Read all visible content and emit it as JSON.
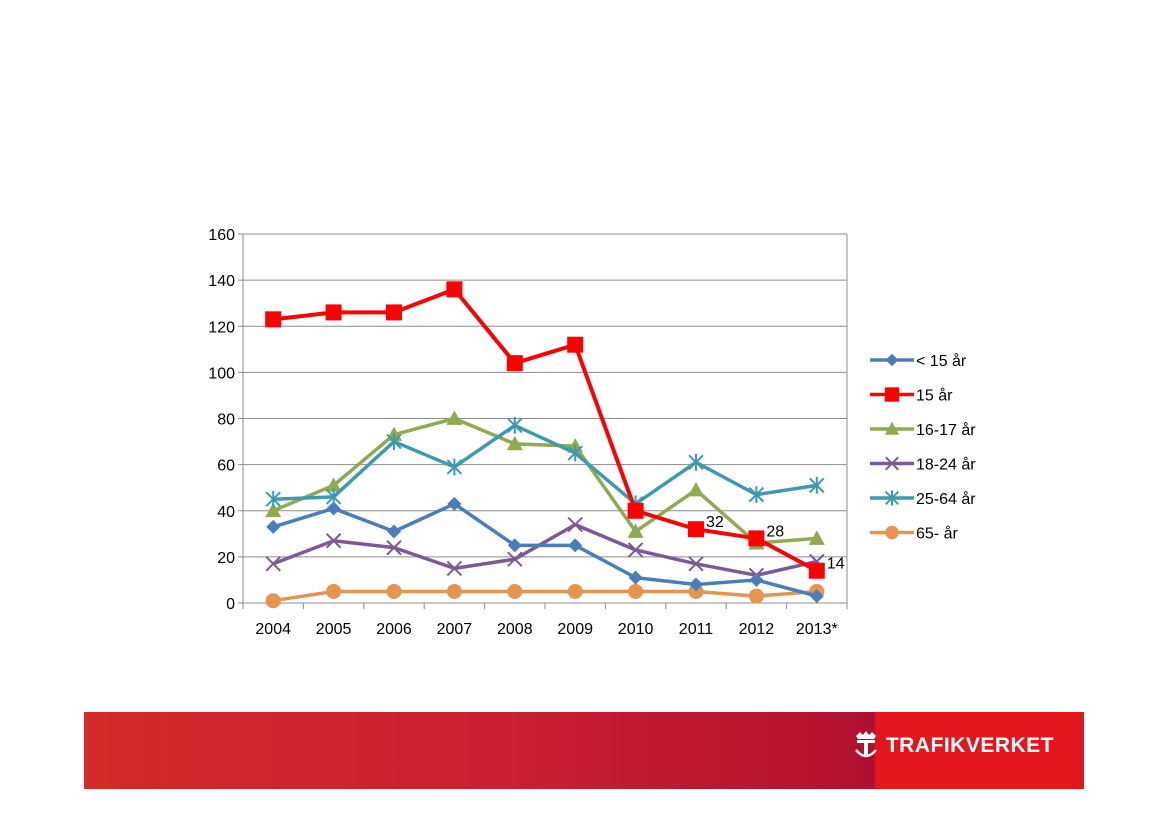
{
  "chart_data": {
    "type": "line",
    "title": "",
    "xlabel": "",
    "ylabel": "",
    "ylim": [
      0,
      160
    ],
    "yticks": [
      0,
      20,
      40,
      60,
      80,
      100,
      120,
      140,
      160
    ],
    "grid": true,
    "legend_position": "right",
    "categories": [
      "2004",
      "2005",
      "2006",
      "2007",
      "2008",
      "2009",
      "2010",
      "2011",
      "2012",
      "2013*"
    ],
    "series": [
      {
        "name": "< 15 år",
        "marker": "diamond",
        "color": "#4a7ebb",
        "values": [
          33,
          41,
          31,
          43,
          25,
          25,
          11,
          8,
          10,
          3
        ]
      },
      {
        "name": "15 år",
        "marker": "square",
        "color": "#ff0000",
        "values": [
          123,
          126,
          126,
          136,
          104,
          112,
          40,
          32,
          28,
          14
        ]
      },
      {
        "name": "16-17 år",
        "marker": "triangle",
        "color": "#8faa4f",
        "values": [
          40,
          51,
          73,
          80,
          69,
          68,
          31,
          49,
          26,
          28
        ]
      },
      {
        "name": "18-24 år",
        "marker": "x",
        "color": "#7b5a97",
        "values": [
          17,
          27,
          24,
          15,
          19,
          34,
          23,
          17,
          12,
          18
        ]
      },
      {
        "name": "25-64 år",
        "marker": "star",
        "color": "#3c9ab0",
        "values": [
          45,
          46,
          70,
          59,
          77,
          65,
          43,
          61,
          47,
          51
        ]
      },
      {
        "name": "65- år",
        "marker": "circle",
        "color": "#e6944e",
        "values": [
          1,
          5,
          5,
          5,
          5,
          5,
          5,
          5,
          3,
          5
        ]
      }
    ],
    "annotations": [
      {
        "series": "15 år",
        "x": "2011",
        "label": "32"
      },
      {
        "series": "15 år",
        "x": "2012",
        "label": "28"
      },
      {
        "series": "15 år",
        "x": "2013*",
        "label": "14"
      }
    ]
  },
  "footer": {
    "brand": "TRAFIKVERKET",
    "logo_icon": "crown-t-icon",
    "colors": {
      "left": "#d52a2a",
      "right": "#e3161d"
    }
  }
}
